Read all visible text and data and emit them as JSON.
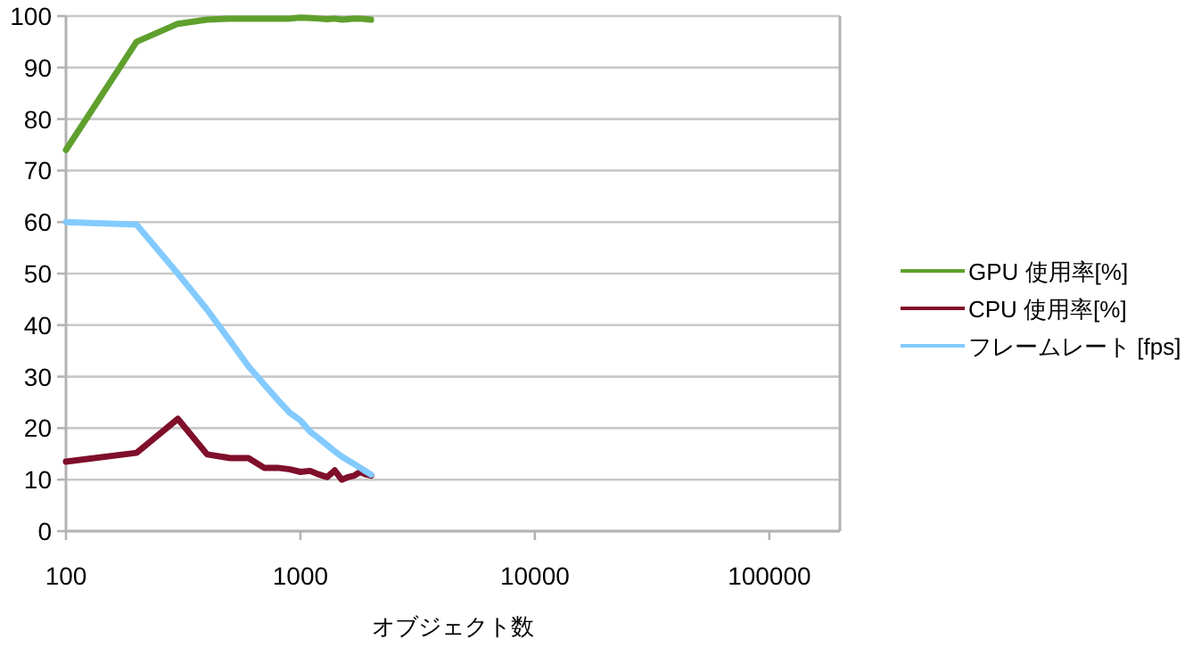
{
  "chart_data": {
    "type": "line",
    "xlabel": "オブジェクト数",
    "log": "x",
    "xlim": [
      100,
      200000
    ],
    "xticks": [
      100,
      1000,
      10000,
      100000
    ],
    "ylim": [
      0,
      100
    ],
    "yticks": [
      0,
      10,
      20,
      30,
      40,
      50,
      60,
      70,
      80,
      90,
      100
    ],
    "grid": "y",
    "legend": "right",
    "line_style": "solid",
    "marker": "none",
    "x": [
      100,
      200,
      300,
      400,
      500,
      600,
      700,
      800,
      900,
      1000,
      1100,
      1200,
      1300,
      1400,
      1500,
      1600,
      1700,
      1800,
      1900,
      2000
    ],
    "series": [
      {
        "name": "GPU 使用率[%]",
        "color": "#5fa02d",
        "values": [
          74,
          95,
          98.5,
          99.3,
          99.5,
          99.5,
          99.5,
          99.5,
          99.5,
          99.7,
          99.6,
          99.5,
          99.4,
          99.5,
          99.3,
          99.4,
          99.5,
          99.5,
          99.4,
          99.3
        ]
      },
      {
        "name": "CPU 使用率[%]",
        "color": "#7f0f2a",
        "values": [
          13.5,
          15.2,
          21.8,
          14.9,
          14.2,
          14.2,
          12.3,
          12.3,
          12,
          11.5,
          11.7,
          11,
          10.5,
          11.8,
          10,
          10.5,
          10.8,
          11.5,
          11,
          10.8
        ]
      },
      {
        "name": "フレームレート [fps]",
        "color": "#83caff",
        "values": [
          60,
          59.5,
          50,
          43,
          37,
          32,
          28.5,
          25.5,
          23,
          21.5,
          19.3,
          18,
          16.7,
          15.5,
          14.5,
          13.7,
          13,
          12.3,
          11.6,
          11
        ]
      }
    ]
  }
}
